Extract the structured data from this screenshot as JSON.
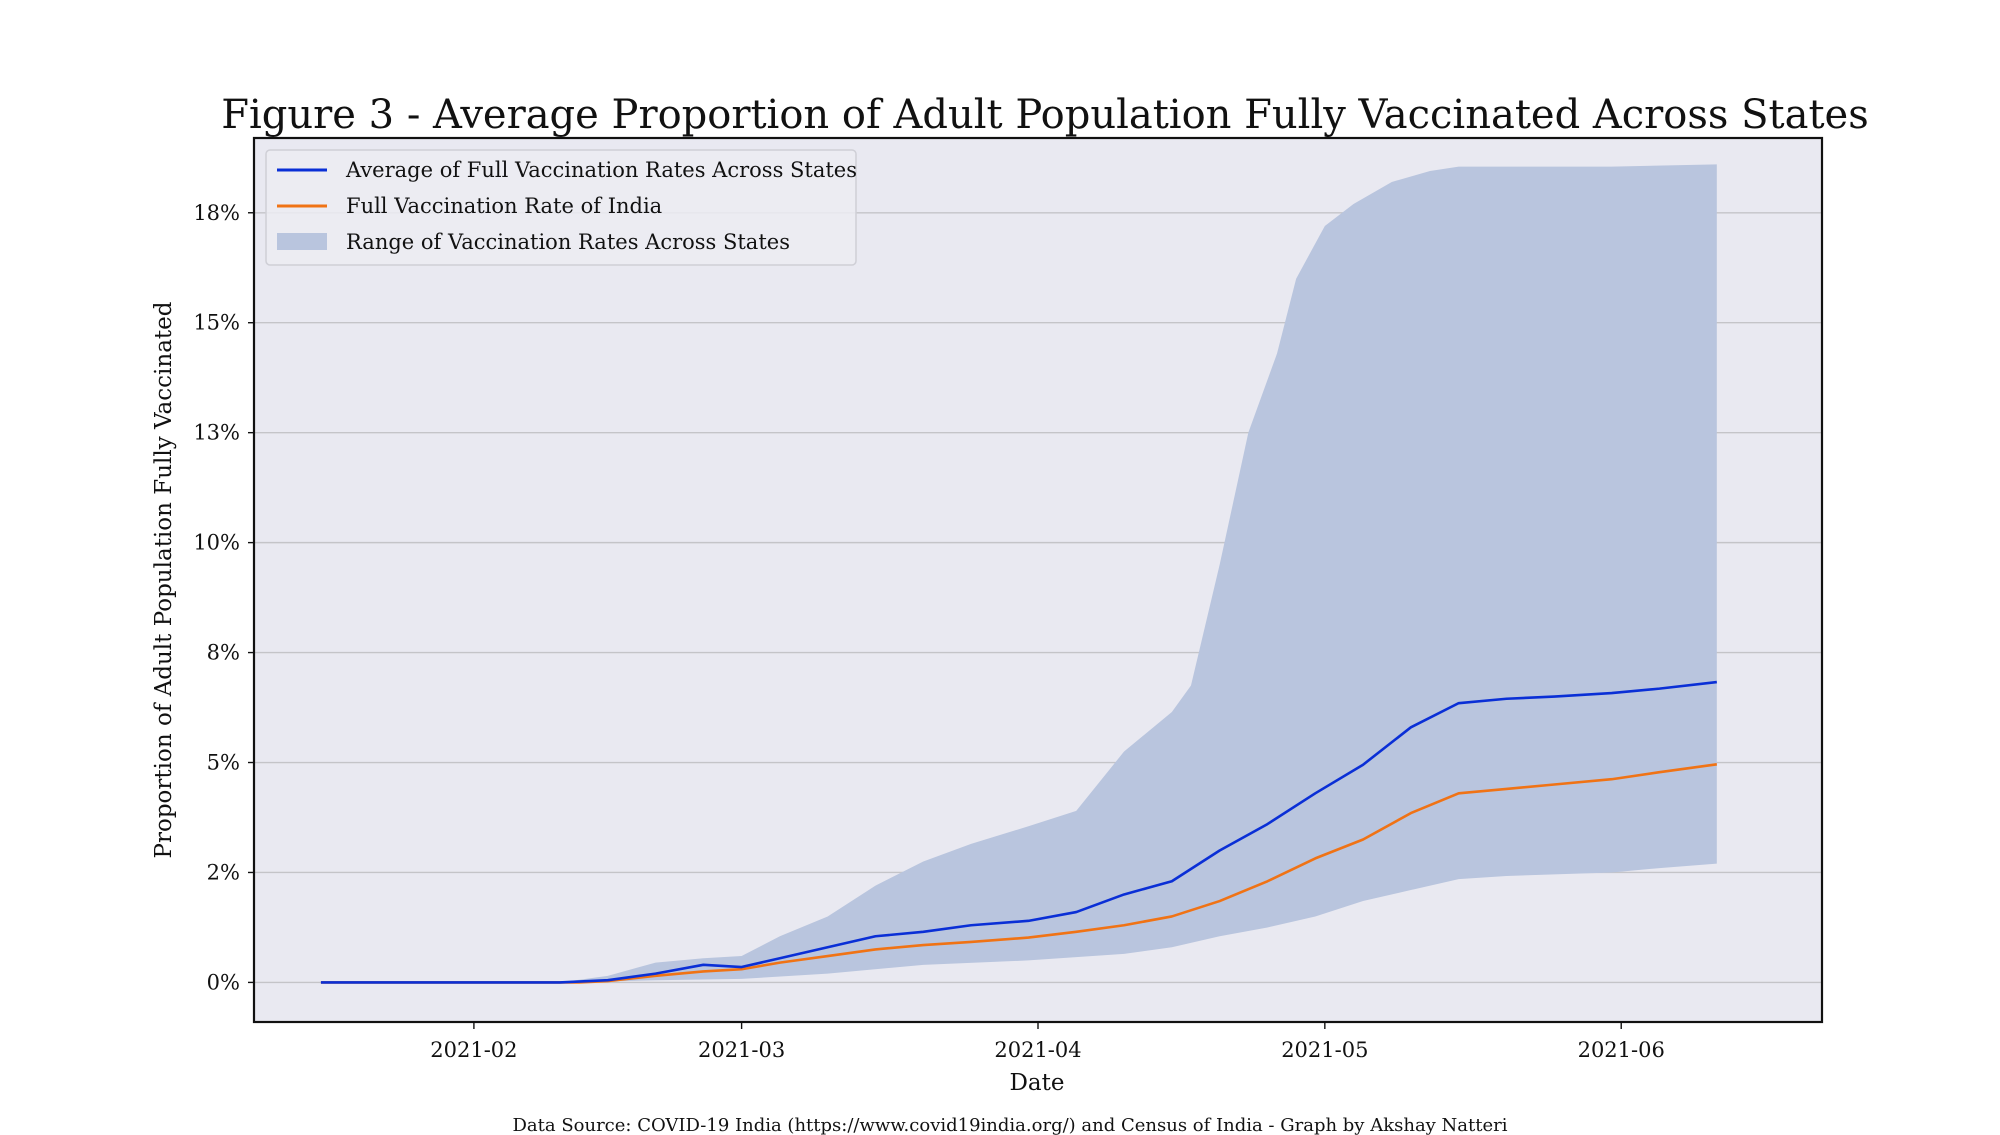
{
  "chart_data": {
    "type": "line",
    "title": "Figure 3 - Average Proportion of Adult Population Fully Vaccinated Across States",
    "xlabel": "Date",
    "ylabel": "Proportion of Adult Population Fully Vaccinated",
    "x_tick_labels": [
      "2021-02",
      "2021-03",
      "2021-04",
      "2021-05",
      "2021-06"
    ],
    "y_tick_labels": [
      "0%",
      "2%",
      "5%",
      "8%",
      "10%",
      "13%",
      "15%",
      "18%"
    ],
    "y_tick_values": [
      0.0,
      2.5,
      5.0,
      7.5,
      10.0,
      12.5,
      15.0,
      17.5
    ],
    "ylim": [
      -0.9,
      19.2
    ],
    "xlim": [
      "2021-01-09",
      "2021-06-22"
    ],
    "grid": "horizontal",
    "legend_position": "top-left",
    "source": "Data Source:  COVID-19 India (https://www.covid19india.org/) and Census of India - Graph by Akshay Natteri",
    "colors": {
      "average": "#0a2fd6",
      "india": "#f07315",
      "range_fill": "#b9c5de",
      "plot_background": "#e9e9f1",
      "grid": "#c4c4c8"
    },
    "series": [
      {
        "name": "Average of Full Vaccination Rates Across States",
        "kind": "line",
        "points": [
          [
            "2021-01-16",
            0.0
          ],
          [
            "2021-02-10",
            0.0
          ],
          [
            "2021-02-15",
            0.05
          ],
          [
            "2021-02-20",
            0.2
          ],
          [
            "2021-02-25",
            0.4
          ],
          [
            "2021-03-01",
            0.35
          ],
          [
            "2021-03-05",
            0.55
          ],
          [
            "2021-03-10",
            0.8
          ],
          [
            "2021-03-15",
            1.05
          ],
          [
            "2021-03-20",
            1.15
          ],
          [
            "2021-03-25",
            1.3
          ],
          [
            "2021-03-31",
            1.4
          ],
          [
            "2021-04-05",
            1.6
          ],
          [
            "2021-04-10",
            2.0
          ],
          [
            "2021-04-15",
            2.3
          ],
          [
            "2021-04-20",
            3.0
          ],
          [
            "2021-04-25",
            3.6
          ],
          [
            "2021-04-30",
            4.3
          ],
          [
            "2021-05-05",
            4.95
          ],
          [
            "2021-05-10",
            5.8
          ],
          [
            "2021-05-15",
            6.35
          ],
          [
            "2021-05-20",
            6.45
          ],
          [
            "2021-05-25",
            6.5
          ],
          [
            "2021-05-31",
            6.58
          ],
          [
            "2021-06-05",
            6.68
          ],
          [
            "2021-06-11",
            6.83
          ]
        ]
      },
      {
        "name": "Full Vaccination Rate of India",
        "kind": "line",
        "points": [
          [
            "2021-01-16",
            0.0
          ],
          [
            "2021-02-12",
            0.0
          ],
          [
            "2021-02-15",
            0.03
          ],
          [
            "2021-02-20",
            0.15
          ],
          [
            "2021-02-25",
            0.25
          ],
          [
            "2021-03-01",
            0.3
          ],
          [
            "2021-03-05",
            0.45
          ],
          [
            "2021-03-10",
            0.6
          ],
          [
            "2021-03-15",
            0.75
          ],
          [
            "2021-03-20",
            0.85
          ],
          [
            "2021-03-25",
            0.92
          ],
          [
            "2021-03-31",
            1.02
          ],
          [
            "2021-04-05",
            1.15
          ],
          [
            "2021-04-10",
            1.3
          ],
          [
            "2021-04-15",
            1.5
          ],
          [
            "2021-04-20",
            1.85
          ],
          [
            "2021-04-25",
            2.3
          ],
          [
            "2021-04-30",
            2.82
          ],
          [
            "2021-05-05",
            3.25
          ],
          [
            "2021-05-10",
            3.85
          ],
          [
            "2021-05-15",
            4.3
          ],
          [
            "2021-05-20",
            4.4
          ],
          [
            "2021-05-25",
            4.5
          ],
          [
            "2021-05-31",
            4.62
          ],
          [
            "2021-06-05",
            4.78
          ],
          [
            "2021-06-11",
            4.96
          ]
        ]
      },
      {
        "name": "Range of Vaccination Rates Across States",
        "kind": "band",
        "upper": [
          [
            "2021-01-16",
            0.0
          ],
          [
            "2021-02-10",
            0.0
          ],
          [
            "2021-02-15",
            0.15
          ],
          [
            "2021-02-20",
            0.45
          ],
          [
            "2021-02-25",
            0.55
          ],
          [
            "2021-03-01",
            0.6
          ],
          [
            "2021-03-05",
            1.05
          ],
          [
            "2021-03-10",
            1.5
          ],
          [
            "2021-03-15",
            2.2
          ],
          [
            "2021-03-20",
            2.75
          ],
          [
            "2021-03-25",
            3.15
          ],
          [
            "2021-03-31",
            3.55
          ],
          [
            "2021-04-05",
            3.9
          ],
          [
            "2021-04-10",
            5.25
          ],
          [
            "2021-04-15",
            6.15
          ],
          [
            "2021-04-17",
            6.75
          ],
          [
            "2021-04-20",
            9.5
          ],
          [
            "2021-04-23",
            12.5
          ],
          [
            "2021-04-26",
            14.3
          ],
          [
            "2021-04-28",
            16.0
          ],
          [
            "2021-05-01",
            17.2
          ],
          [
            "2021-05-04",
            17.7
          ],
          [
            "2021-05-08",
            18.2
          ],
          [
            "2021-05-12",
            18.45
          ],
          [
            "2021-05-15",
            18.55
          ],
          [
            "2021-05-31",
            18.55
          ],
          [
            "2021-06-11",
            18.6
          ]
        ],
        "lower": [
          [
            "2021-01-16",
            0.0
          ],
          [
            "2021-02-10",
            0.0
          ],
          [
            "2021-02-15",
            0.02
          ],
          [
            "2021-02-20",
            0.05
          ],
          [
            "2021-03-01",
            0.08
          ],
          [
            "2021-03-10",
            0.2
          ],
          [
            "2021-03-20",
            0.4
          ],
          [
            "2021-03-31",
            0.5
          ],
          [
            "2021-04-10",
            0.65
          ],
          [
            "2021-04-15",
            0.8
          ],
          [
            "2021-04-20",
            1.05
          ],
          [
            "2021-04-25",
            1.25
          ],
          [
            "2021-04-30",
            1.5
          ],
          [
            "2021-05-05",
            1.85
          ],
          [
            "2021-05-10",
            2.1
          ],
          [
            "2021-05-15",
            2.35
          ],
          [
            "2021-05-20",
            2.42
          ],
          [
            "2021-05-31",
            2.5
          ],
          [
            "2021-06-05",
            2.6
          ],
          [
            "2021-06-11",
            2.7
          ]
        ]
      }
    ]
  }
}
